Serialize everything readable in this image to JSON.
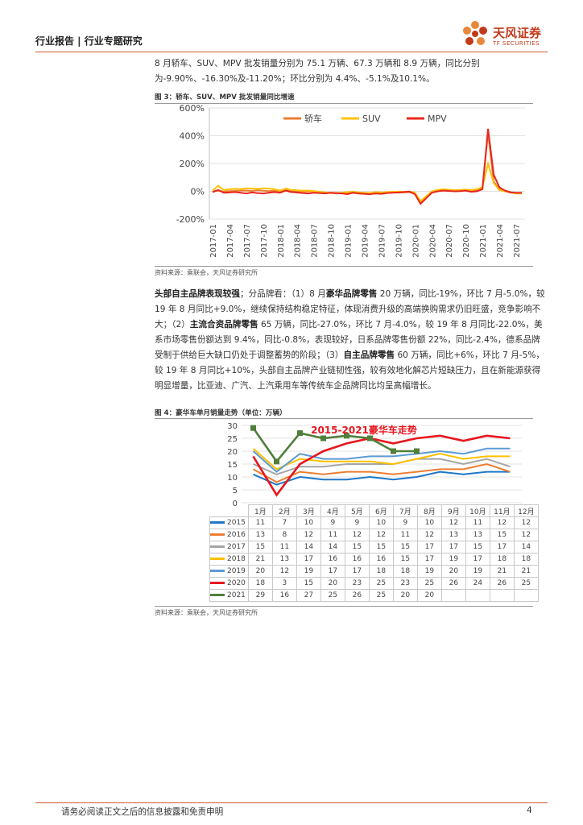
{
  "header": {
    "title": "行业报告 | 行业专题研究",
    "logo_name": "天风证券",
    "logo_sub": "TF SECURITIES",
    "accent_color": "#d05a2a",
    "logo_icon": "flower-logo-icon"
  },
  "para1": "8 月轿车、SUV、MPV 批发销量分别为 75.1 万辆、67.3 万辆和 8.9 万辆，同比分别为-9.90%、-16.30%及-11.20%；环比分别为 4.4%、-5.1%及10.1%。",
  "fig3": {
    "title": "图 3：轿车、SUV、MPV 批发销量同比增速",
    "source": "资料来源：乘联会，天风证券研究所"
  },
  "para2": {
    "lead": "头部自主品牌表现较强",
    "t1": "；分品牌看：（1）8 月",
    "b1": "豪华品牌零售",
    "t2": " 20 万辆，同比-19%，环比 7 月-5.0%，较 19 年 8 月同比+9.0%，继续保持结构稳定特征，体现消费升级的高端换购需求仍旧旺盛，竞争影响不大；（2）",
    "b2": "主流合资品牌零售",
    "t3": " 65 万辆，同比-27.0%，环比 7 月-4.0%，较 19 年 8 月同比-22.0%，美系市场零售份额达到 9.4%，同比-0.8%，表现较好，日系品牌零售份额 22%，同比-2.4%，德系品牌受制于供给巨大缺口仍处于调整蓄势的阶段；（3）",
    "b3": "自主品牌零售",
    "t4": " 60 万辆，同比+6%，环比 7 月-5%，较 19 年 8 月同比+10%，头部自主品牌产业链韧性强，较有效地化解芯片短缺压力，且在新能源获得明显增量，比亚迪、广汽、上汽乘用车等传统车企品牌同比均呈高幅增长。"
  },
  "fig4": {
    "title": "图 4：豪华车单月销量走势（单位：万辆）",
    "source": "资料来源：乘联会，天风证券研究所"
  },
  "footer": {
    "disclaimer": "请务必阅读正文之后的信息披露和免责申明",
    "page": "4"
  },
  "chart_data": [
    {
      "type": "line",
      "x": [
        "2017-01",
        "2017-02",
        "2017-03",
        "2017-04",
        "2017-05",
        "2017-06",
        "2017-07",
        "2017-08",
        "2017-09",
        "2017-10",
        "2017-11",
        "2017-12",
        "2018-01",
        "2018-02",
        "2018-03",
        "2018-04",
        "2018-05",
        "2018-06",
        "2018-07",
        "2018-08",
        "2018-09",
        "2018-10",
        "2018-11",
        "2018-12",
        "2019-01",
        "2019-02",
        "2019-03",
        "2019-04",
        "2019-05",
        "2019-06",
        "2019-07",
        "2019-08",
        "2019-09",
        "2019-10",
        "2019-11",
        "2019-12",
        "2020-01",
        "2020-02",
        "2020-03",
        "2020-04",
        "2020-05",
        "2020-06",
        "2020-07",
        "2020-08",
        "2020-09",
        "2020-10",
        "2020-11",
        "2020-12",
        "2021-01",
        "2021-02",
        "2021-03",
        "2021-04",
        "2021-05",
        "2021-06",
        "2021-07",
        "2021-08"
      ],
      "xticks": [
        "2017-01",
        "2017-04",
        "2017-07",
        "2017-10",
        "2018-01",
        "2018-04",
        "2018-07",
        "2018-10",
        "2019-01",
        "2019-04",
        "2019-07",
        "2019-10",
        "2020-01",
        "2020-04",
        "2020-07",
        "2020-10",
        "2021-01",
        "2021-04",
        "2021-07"
      ],
      "yticks": [
        "600%",
        "400%",
        "200%",
        "0%",
        "-200%"
      ],
      "ylim": [
        -200,
        600
      ],
      "series": [
        {
          "name": "轿车",
          "color": "#ed7d31",
          "values": [
            0,
            5,
            -2,
            2,
            3,
            5,
            6,
            3,
            8,
            4,
            2,
            5,
            -5,
            8,
            4,
            3,
            -2,
            0,
            2,
            -5,
            -8,
            -12,
            -15,
            -14,
            -12,
            -10,
            -15,
            -18,
            -20,
            -10,
            -12,
            -10,
            -8,
            -9,
            -8,
            -6,
            -15,
            -80,
            -40,
            -5,
            5,
            8,
            10,
            5,
            8,
            10,
            9,
            8,
            20,
            420,
            70,
            15,
            5,
            -5,
            -12,
            -10
          ]
        },
        {
          "name": "SUV",
          "color": "#ffc000",
          "values": [
            5,
            40,
            10,
            15,
            18,
            16,
            22,
            20,
            18,
            22,
            20,
            15,
            5,
            20,
            10,
            8,
            5,
            6,
            2,
            -3,
            -8,
            -10,
            -12,
            -10,
            -5,
            -3,
            -8,
            -10,
            -12,
            -5,
            -8,
            -6,
            -3,
            -2,
            -4,
            -2,
            -10,
            -70,
            -35,
            0,
            10,
            15,
            12,
            8,
            10,
            12,
            10,
            15,
            30,
            200,
            60,
            10,
            0,
            -8,
            -15,
            -16
          ]
        },
        {
          "name": "MPV",
          "color": "#e8261e",
          "values": [
            -5,
            10,
            -10,
            -8,
            -5,
            -10,
            -15,
            -8,
            -12,
            -15,
            -10,
            -5,
            -10,
            5,
            -5,
            -8,
            -12,
            -15,
            -10,
            -12,
            -15,
            -10,
            -12,
            -15,
            -20,
            -10,
            -15,
            -18,
            -20,
            -15,
            -18,
            -12,
            -10,
            -8,
            -5,
            -2,
            -20,
            -90,
            -50,
            -10,
            0,
            5,
            3,
            0,
            2,
            5,
            -3,
            0,
            15,
            450,
            120,
            30,
            5,
            -8,
            -10,
            -11
          ]
        }
      ]
    },
    {
      "type": "line",
      "title": "2015-2021豪华车走势",
      "categories": [
        "1月",
        "2月",
        "3月",
        "4月",
        "5月",
        "6月",
        "7月",
        "8月",
        "9月",
        "10月",
        "11月",
        "12月"
      ],
      "ylim": [
        0,
        30
      ],
      "yticks": [
        "30",
        "25",
        "20",
        "15",
        "10",
        "5",
        "0"
      ],
      "series": [
        {
          "name": "2015",
          "color": "#1f77c8",
          "values": [
            11,
            7,
            10,
            9,
            9,
            10,
            9,
            10,
            12,
            11,
            12,
            12
          ]
        },
        {
          "name": "2016",
          "color": "#ed7d31",
          "values": [
            13,
            8,
            12,
            11,
            12,
            12,
            11,
            12,
            13,
            13,
            15,
            12
          ]
        },
        {
          "name": "2017",
          "color": "#a5a5a5",
          "values": [
            15,
            11,
            14,
            14,
            15,
            15,
            15,
            17,
            17,
            15,
            17,
            14
          ]
        },
        {
          "name": "2018",
          "color": "#ffc000",
          "values": [
            21,
            13,
            17,
            16,
            16,
            16,
            15,
            17,
            19,
            17,
            18,
            18
          ]
        },
        {
          "name": "2019",
          "color": "#5b9bd5",
          "values": [
            20,
            12,
            19,
            17,
            17,
            18,
            18,
            19,
            20,
            19,
            21,
            21
          ]
        },
        {
          "name": "2020",
          "color": "#e8161e",
          "values": [
            18,
            3,
            15,
            20,
            23,
            25,
            23,
            25,
            26,
            24,
            26,
            25
          ]
        },
        {
          "name": "2021",
          "color": "#4f7f3a",
          "values": [
            29,
            16,
            27,
            25,
            26,
            25,
            20,
            20,
            null,
            null,
            null,
            null
          ]
        }
      ]
    }
  ]
}
